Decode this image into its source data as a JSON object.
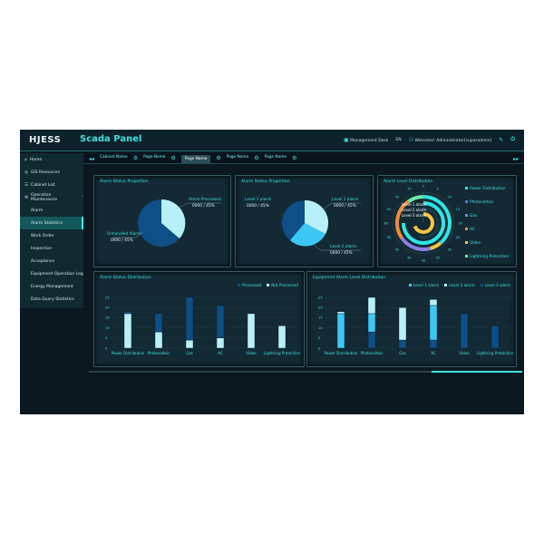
{
  "header": {
    "logo": "HJESS",
    "title": "Scada Panel",
    "management_desk": "Management Desk",
    "lang": "EN",
    "welcome": "Welcome! Administrator[superadmin]"
  },
  "tabs": [
    "Cabinet Name",
    "Page Name",
    "Page Name",
    "Page Name",
    "Page Name"
  ],
  "active_tab": 2,
  "sidebar": {
    "items": [
      {
        "label": "Home",
        "icon": "home-icon"
      },
      {
        "label": "GIS Resources",
        "icon": "globe-icon"
      },
      {
        "label": "Cabinet List",
        "icon": "list-icon"
      },
      {
        "label": "Operation Maintenance",
        "icon": "wrench-icon"
      },
      {
        "label": "Alarm"
      },
      {
        "label": "Alarm Statistics"
      },
      {
        "label": "Work Order"
      },
      {
        "label": "Inspection"
      },
      {
        "label": "Acceptance"
      },
      {
        "label": "Equipment Operation Log"
      },
      {
        "label": "Energy Management"
      },
      {
        "label": "Data Query Statistics"
      }
    ],
    "active": 5
  },
  "pie1": {
    "title": "Alarm Status Proportion",
    "a_label": "Alarm Processed",
    "a_value": "0000 / 45%",
    "b_label": "Unhandled Alarm",
    "b_value": "0000 / 45%"
  },
  "pie2": {
    "title": "Alarm Status Proportion",
    "a_label": "Level 1 alarm",
    "a_value": "0000 / 45%",
    "b_label": "Level 2 alarm",
    "b_value": "0000 / 45%"
  },
  "radial": {
    "title": "Alarm Level Distribution",
    "ring_labels": [
      "Level 1 alarm",
      "Level 2 alarm",
      "Level 3 alarm"
    ],
    "ticks": [
      "0",
      "5",
      "10",
      "15",
      "20",
      "25",
      "30",
      "35",
      "40",
      "45",
      "50",
      "55",
      "60",
      "65",
      "70",
      "75"
    ],
    "legend": [
      {
        "name": "Power Distribution",
        "color": "#2de6e6"
      },
      {
        "name": "Photovoltaic",
        "color": "#4a7de0"
      },
      {
        "name": "Gas",
        "color": "#8a7de8"
      },
      {
        "name": "AC",
        "color": "#f08a3c"
      },
      {
        "name": "Video",
        "color": "#f5c542"
      },
      {
        "name": "Lightning Protection",
        "color": "#6ee8a8"
      }
    ]
  },
  "chart_data": [
    {
      "type": "bar",
      "stacked": true,
      "title": "Alarm Status Distribution",
      "categories": [
        "Power Distribution",
        "Photovoltaic",
        "Gas",
        "AC",
        "Video",
        "Lightning Protection"
      ],
      "ylim": [
        0,
        25
      ],
      "yticks": [
        "0",
        "5",
        "10",
        "15",
        "20",
        "25"
      ],
      "legend_position": "top-right",
      "series": [
        {
          "name": "Not Processed",
          "color": "#b8f0fa",
          "values": [
            17,
            8,
            4,
            5,
            17,
            11
          ]
        },
        {
          "name": "Processed",
          "color": "#0d4f86",
          "values": [
            1,
            9,
            21,
            16,
            0,
            0
          ]
        }
      ],
      "legend_order": [
        "Processed",
        "Not Processed"
      ]
    },
    {
      "type": "bar",
      "stacked": true,
      "title": "Equipment Alarm Level Distribution",
      "categories": [
        "Power Distribution",
        "Photovoltaic",
        "Gas",
        "AC",
        "Video",
        "Lightning Protection"
      ],
      "ylim": [
        0,
        25
      ],
      "yticks": [
        "0",
        "5",
        "10",
        "15",
        "20",
        "25"
      ],
      "legend_position": "top-right",
      "series": [
        {
          "name": "Level 3 alarm",
          "color": "#0d4f86",
          "values": [
            0,
            8,
            4,
            4,
            17,
            11
          ]
        },
        {
          "name": "Level 1 alarm",
          "color": "#3cc8f5",
          "values": [
            17,
            9,
            0,
            17,
            0,
            0
          ]
        },
        {
          "name": "Level 2 alarm",
          "color": "#b8f0fa",
          "values": [
            1,
            8,
            16,
            3,
            0,
            0
          ]
        }
      ],
      "legend_order": [
        "Level 1 alarm",
        "Level 2 alarm",
        "Level 3 alarm"
      ]
    }
  ]
}
